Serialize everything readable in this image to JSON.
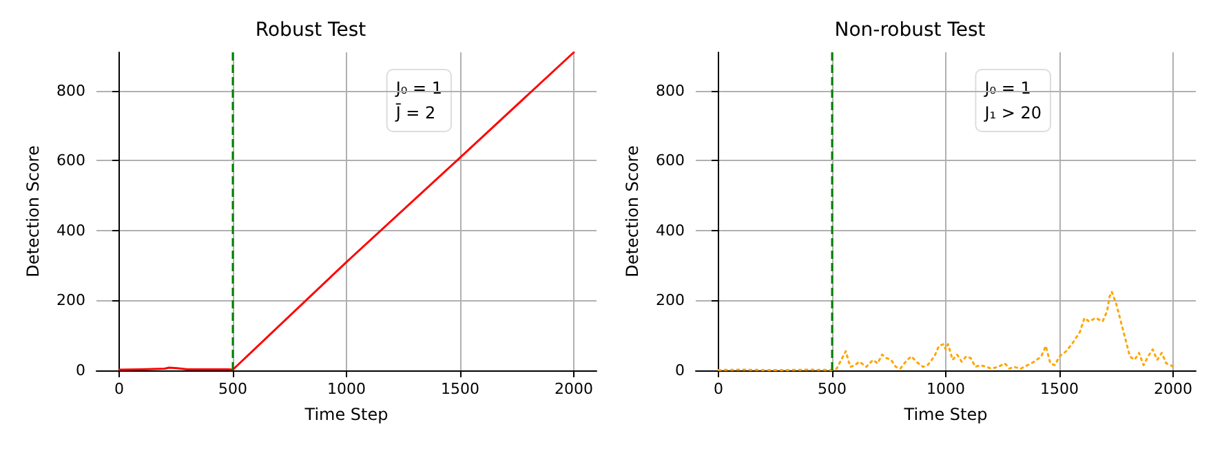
{
  "chart_data": [
    {
      "type": "line",
      "title": "Robust Test",
      "xlabel": "Time Step",
      "ylabel": "Detection Score",
      "annotations": [
        "J₀ = 1",
        "J̄ = 2"
      ],
      "series": [
        {
          "color": "#ff0000",
          "line_style": "solid",
          "x": [
            0,
            100,
            200,
            220,
            260,
            300,
            400,
            480,
            500,
            1000,
            1500,
            2000
          ],
          "values": [
            2,
            3,
            5,
            8,
            6,
            3,
            3,
            3,
            2,
            310,
            609,
            910
          ]
        }
      ],
      "ref_lines": [
        {
          "axis": "x",
          "value": 500,
          "color": "#008000",
          "line_style": "dashed"
        }
      ],
      "xlim": [
        -100,
        2100
      ],
      "ylim": [
        0,
        910
      ],
      "xticks": [
        0,
        500,
        1000,
        1500,
        2000
      ],
      "yticks": [
        0,
        200,
        400,
        600,
        800
      ],
      "grid": true,
      "marker": "none"
    },
    {
      "type": "line",
      "title": "Non-robust Test",
      "xlabel": "Time Step",
      "ylabel": "Detection Score",
      "annotations": [
        "J₀ = 1",
        "J₁ > 20"
      ],
      "series": [
        {
          "color": "#ffa500",
          "line_style": "dotted",
          "x": [
            0,
            100,
            200,
            300,
            400,
            500,
            520,
            560,
            580,
            600,
            620,
            650,
            680,
            700,
            720,
            740,
            760,
            780,
            800,
            830,
            850,
            870,
            900,
            920,
            950,
            970,
            990,
            1000,
            1010,
            1030,
            1050,
            1070,
            1090,
            1110,
            1130,
            1150,
            1180,
            1200,
            1230,
            1260,
            1280,
            1300,
            1330,
            1360,
            1390,
            1420,
            1440,
            1460,
            1480,
            1500,
            1530,
            1560,
            1590,
            1610,
            1630,
            1660,
            1690,
            1710,
            1720,
            1730,
            1750,
            1770,
            1790,
            1810,
            1830,
            1850,
            1870,
            1890,
            1910,
            1930,
            1950,
            1970,
            1990,
            2000
          ],
          "values": [
            1,
            2,
            1,
            1,
            2,
            1,
            5,
            55,
            10,
            15,
            25,
            10,
            30,
            20,
            45,
            35,
            30,
            10,
            5,
            30,
            40,
            25,
            10,
            15,
            40,
            70,
            75,
            60,
            75,
            30,
            45,
            25,
            40,
            35,
            10,
            15,
            10,
            5,
            10,
            20,
            5,
            10,
            5,
            15,
            25,
            40,
            70,
            20,
            15,
            40,
            55,
            80,
            110,
            150,
            140,
            150,
            140,
            170,
            210,
            225,
            190,
            140,
            90,
            40,
            30,
            50,
            15,
            40,
            60,
            30,
            50,
            20,
            15,
            10
          ]
        }
      ],
      "ref_lines": [
        {
          "axis": "x",
          "value": 500,
          "color": "#008000",
          "line_style": "dashed"
        }
      ],
      "xlim": [
        -100,
        2100
      ],
      "ylim": [
        0,
        910
      ],
      "xticks": [
        0,
        500,
        1000,
        1500,
        2000
      ],
      "yticks": [
        0,
        200,
        400,
        600,
        800
      ],
      "grid": true,
      "marker": "none"
    }
  ]
}
